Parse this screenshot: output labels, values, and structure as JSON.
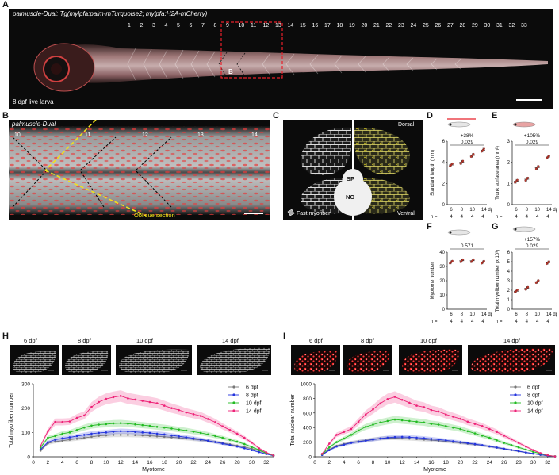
{
  "panel_labels": [
    "A",
    "B",
    "C",
    "D",
    "E",
    "F",
    "G",
    "H",
    "I"
  ],
  "panelA": {
    "title": "palmuscle-Dual: Tg(mylpfa:palm-mTurquoise2; mylpfa:H2A-mCherry)",
    "myotome_numbers": [
      "1",
      "2",
      "3",
      "4",
      "5",
      "6",
      "7",
      "8",
      "9",
      "10",
      "11",
      "12",
      "13",
      "14",
      "15",
      "16",
      "17",
      "18",
      "19",
      "20",
      "21",
      "22",
      "23",
      "24",
      "25",
      "26",
      "27",
      "28",
      "29",
      "30",
      "31",
      "32",
      "33"
    ],
    "box_label": "B",
    "caption": "8 dpf live larva"
  },
  "panelB": {
    "title": "palmuscle-Dual",
    "numbers": [
      "10",
      "11",
      "12",
      "13",
      "14"
    ],
    "annotation": "Oblique section"
  },
  "panelC": {
    "dorsal": "Dorsal",
    "ventral": "Ventral",
    "sp": "SP",
    "no": "NO",
    "legend": "Fast myofiber"
  },
  "panelD": {
    "ylabel": "Standard length (mm)",
    "stat_pct": "+38%",
    "stat_p": "0.029",
    "yticks": [
      "0",
      "2",
      "4",
      "6"
    ],
    "xticks": [
      "6",
      "8",
      "10",
      "14 dpf"
    ],
    "n_label": "n =",
    "n_values": [
      "4",
      "4",
      "4",
      "4"
    ]
  },
  "panelE": {
    "ylabel": "Trunk surface area (mm²)",
    "stat_pct": "+105%",
    "stat_p": "0.029",
    "yticks": [
      "0",
      "1",
      "2",
      "3"
    ],
    "xticks": [
      "6",
      "8",
      "10",
      "14 dpf"
    ],
    "n_label": "n =",
    "n_values": [
      "4",
      "4",
      "4",
      "4"
    ]
  },
  "panelF": {
    "ylabel": "Myotome number",
    "stat_p": "0.571",
    "yticks": [
      "0",
      "10",
      "20",
      "30",
      "40"
    ],
    "xticks": [
      "6",
      "8",
      "10",
      "14 dpf"
    ],
    "n_label": "n =",
    "n_values": [
      "4",
      "4",
      "4",
      "4"
    ]
  },
  "panelG": {
    "ylabel": "Total myofiber number (x 10³)",
    "stat_pct": "+157%",
    "stat_p": "0.029",
    "yticks": [
      "0",
      "1",
      "2",
      "3",
      "4",
      "5",
      "6"
    ],
    "xticks": [
      "6",
      "8",
      "10",
      "14 dpf"
    ],
    "n_label": "n =",
    "n_values": [
      "4",
      "4",
      "4",
      "4"
    ]
  },
  "panelH": {
    "thumbs": [
      "6 dpf",
      "8 dpf",
      "10 dpf",
      "14 dpf"
    ]
  },
  "panelI": {
    "thumbs": [
      "6 dpf",
      "8 dpf",
      "10 dpf",
      "14 dpf"
    ]
  },
  "colors": {
    "6 dpf": "#777777",
    "8 dpf": "#2233dd",
    "10 dpf": "#22bb22",
    "14 dpf": "#ee2277",
    "annotation_yellow": "#f2e21a",
    "box_red": "#e8202a"
  },
  "chart_data": [
    {
      "panel": "D",
      "type": "scatter",
      "categories": [
        "6",
        "8",
        "10",
        "14 dpf"
      ],
      "values": [
        3.75,
        4.0,
        4.65,
        5.15
      ],
      "ylabel": "Standard length (mm)",
      "ylim": [
        0,
        6
      ]
    },
    {
      "panel": "E",
      "type": "scatter",
      "categories": [
        "6",
        "8",
        "10",
        "14 dpf"
      ],
      "values": [
        1.1,
        1.2,
        1.75,
        2.25
      ],
      "ylabel": "Trunk surface area (mm²)",
      "ylim": [
        0,
        3
      ]
    },
    {
      "panel": "F",
      "type": "scatter",
      "categories": [
        "6",
        "8",
        "10",
        "14 dpf"
      ],
      "values": [
        33,
        34,
        34,
        33
      ],
      "ylabel": "Myotome number",
      "ylim": [
        0,
        40
      ]
    },
    {
      "panel": "G",
      "type": "scatter",
      "categories": [
        "6",
        "8",
        "10",
        "14 dpf"
      ],
      "values": [
        1.9,
        2.2,
        2.9,
        4.9
      ],
      "ylabel": "Total myofiber number (x 10³)",
      "ylim": [
        0,
        6
      ]
    },
    {
      "panel": "H",
      "type": "line",
      "x": [
        1,
        2,
        3,
        4,
        5,
        6,
        7,
        8,
        9,
        10,
        11,
        12,
        13,
        14,
        15,
        16,
        17,
        18,
        19,
        20,
        21,
        22,
        23,
        24,
        25,
        26,
        27,
        28,
        29,
        30,
        31,
        32,
        33
      ],
      "xlabel": "Myotome",
      "ylabel": "Total myofiber number",
      "xlim": [
        0,
        33
      ],
      "ylim": [
        0,
        300
      ],
      "xticks": [
        0,
        2,
        4,
        6,
        8,
        10,
        12,
        14,
        16,
        18,
        20,
        22,
        24,
        26,
        28,
        30,
        32
      ],
      "yticks": [
        0,
        100,
        200,
        300
      ],
      "legend": [
        "6 dpf",
        "8 dpf",
        "10 dpf",
        "14 dpf"
      ],
      "series": [
        {
          "name": "6 dpf",
          "values": [
            25,
            55,
            62,
            66,
            70,
            74,
            78,
            82,
            86,
            88,
            90,
            90,
            90,
            89,
            88,
            86,
            84,
            82,
            80,
            78,
            75,
            72,
            69,
            65,
            61,
            56,
            51,
            46,
            40,
            33,
            25,
            15,
            6
          ]
        },
        {
          "name": "8 dpf",
          "values": [
            30,
            60,
            70,
            76,
            80,
            85,
            90,
            95,
            98,
            100,
            103,
            105,
            104,
            102,
            100,
            98,
            95,
            92,
            88,
            84,
            80,
            76,
            71,
            66,
            60,
            54,
            48,
            42,
            35,
            27,
            19,
            11,
            4
          ]
        },
        {
          "name": "10 dpf",
          "values": [
            38,
            78,
            85,
            95,
            100,
            110,
            120,
            128,
            132,
            134,
            137,
            138,
            136,
            133,
            130,
            127,
            123,
            120,
            116,
            112,
            108,
            103,
            98,
            92,
            85,
            78,
            70,
            62,
            52,
            40,
            28,
            15,
            5
          ]
        },
        {
          "name": "14 dpf",
          "values": [
            45,
            105,
            143,
            143,
            145,
            160,
            170,
            205,
            225,
            238,
            245,
            250,
            240,
            235,
            230,
            225,
            220,
            210,
            200,
            192,
            182,
            175,
            168,
            155,
            142,
            125,
            110,
            95,
            78,
            58,
            35,
            18,
            5
          ]
        }
      ]
    },
    {
      "panel": "I",
      "type": "line",
      "x": [
        1,
        2,
        3,
        4,
        5,
        6,
        7,
        8,
        9,
        10,
        11,
        12,
        13,
        14,
        15,
        16,
        17,
        18,
        19,
        20,
        21,
        22,
        23,
        24,
        25,
        26,
        27,
        28,
        29,
        30,
        31,
        32,
        33
      ],
      "xlabel": "Myotome",
      "ylabel": "Total nuclear number",
      "xlim": [
        0,
        33
      ],
      "ylim": [
        0,
        1000
      ],
      "xticks": [
        0,
        2,
        4,
        6,
        8,
        10,
        12,
        14,
        16,
        18,
        20,
        22,
        24,
        26,
        28,
        30,
        32
      ],
      "yticks": [
        0,
        200,
        400,
        600,
        800,
        1000
      ],
      "legend": [
        "6 dpf",
        "8 dpf",
        "10 dpf",
        "14 dpf"
      ],
      "series": [
        {
          "name": "6 dpf",
          "values": [
            30,
            100,
            150,
            175,
            195,
            210,
            225,
            240,
            250,
            255,
            255,
            252,
            248,
            242,
            235,
            228,
            220,
            210,
            200,
            190,
            180,
            168,
            155,
            140,
            125,
            108,
            92,
            75,
            58,
            42,
            26,
            14,
            5
          ]
        },
        {
          "name": "8 dpf",
          "values": [
            25,
            90,
            140,
            165,
            190,
            205,
            220,
            235,
            250,
            262,
            270,
            272,
            268,
            262,
            255,
            246,
            236,
            225,
            213,
            200,
            187,
            173,
            158,
            142,
            126,
            110,
            93,
            76,
            59,
            43,
            27,
            14,
            5
          ]
        },
        {
          "name": "10 dpf",
          "values": [
            35,
            130,
            200,
            250,
            300,
            360,
            410,
            440,
            470,
            490,
            510,
            500,
            490,
            480,
            470,
            450,
            440,
            420,
            400,
            380,
            350,
            320,
            290,
            260,
            225,
            190,
            160,
            128,
            98,
            68,
            42,
            20,
            6
          ]
        },
        {
          "name": "14 dpf",
          "values": [
            40,
            180,
            300,
            340,
            380,
            480,
            580,
            650,
            730,
            790,
            820,
            780,
            740,
            700,
            680,
            640,
            620,
            580,
            550,
            520,
            480,
            450,
            420,
            380,
            340,
            290,
            240,
            190,
            140,
            90,
            50,
            20,
            5
          ]
        }
      ]
    }
  ]
}
